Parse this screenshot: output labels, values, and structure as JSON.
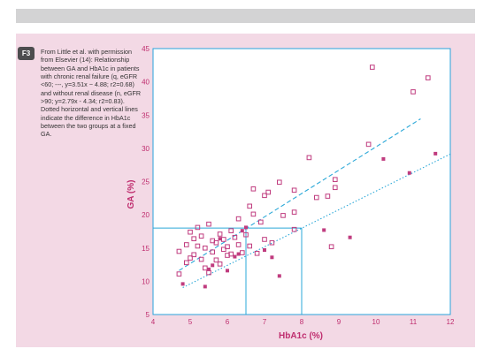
{
  "figure": {
    "badge": "F3",
    "caption": "From Little et al. with permission from Elsevier (14): Relationship between GA and HbA1c in patients with chronic renal failure (q, eGFR <60; ---, y=3.51x − 4.88; r2=0.68) and without renal disease (n, eGFR >90; y=2.79x - 4.34; r2=0.83). Dotted horizontal and vertical lines indicate the difference in HbA1c between the two groups at a fixed GA."
  },
  "colors": {
    "panel_bg": "#f3d9e5",
    "plot_border": "#29a3dc",
    "regression_line": "#2ba8d8",
    "marker": "#c03c7f",
    "label": "#bf2d6e"
  },
  "chart_data": {
    "type": "scatter",
    "title": "",
    "xlabel": "HbA1c (%)",
    "ylabel": "GA (%)",
    "xlim": [
      4,
      12
    ],
    "ylim": [
      5,
      45
    ],
    "x_ticks": [
      4,
      5,
      6,
      7,
      8,
      9,
      10,
      11,
      12
    ],
    "y_ticks": [
      5,
      10,
      15,
      20,
      25,
      30,
      35,
      40,
      45
    ],
    "grid": false,
    "series": [
      {
        "marker": "open-square",
        "points": [
          [
            4.7,
            11.1
          ],
          [
            4.7,
            14.5
          ],
          [
            4.9,
            12.8
          ],
          [
            4.9,
            15.5
          ],
          [
            5.0,
            13.5
          ],
          [
            5.0,
            17.4
          ],
          [
            5.1,
            14.0
          ],
          [
            5.1,
            16.4
          ],
          [
            5.2,
            15.3
          ],
          [
            5.2,
            18.1
          ],
          [
            5.3,
            16.8
          ],
          [
            5.3,
            13.3
          ],
          [
            5.4,
            12.0
          ],
          [
            5.4,
            15.0
          ],
          [
            5.5,
            18.6
          ],
          [
            5.5,
            11.3
          ],
          [
            5.6,
            14.4
          ],
          [
            5.6,
            16.1
          ],
          [
            5.7,
            13.2
          ],
          [
            5.7,
            15.8
          ],
          [
            5.8,
            17.1
          ],
          [
            5.8,
            12.6
          ],
          [
            5.9,
            14.8
          ],
          [
            5.9,
            16.3
          ],
          [
            6.0,
            13.9
          ],
          [
            6.0,
            15.2
          ],
          [
            6.1,
            17.6
          ],
          [
            6.1,
            14.1
          ],
          [
            6.2,
            16.6
          ],
          [
            6.3,
            15.5
          ],
          [
            6.3,
            19.4
          ],
          [
            6.4,
            14.3
          ],
          [
            6.5,
            17.0
          ],
          [
            6.6,
            21.3
          ],
          [
            6.6,
            15.3
          ],
          [
            6.7,
            20.1
          ],
          [
            6.7,
            23.9
          ],
          [
            6.8,
            14.2
          ],
          [
            6.9,
            18.9
          ],
          [
            7.0,
            16.3
          ],
          [
            7.0,
            22.9
          ],
          [
            7.1,
            23.4
          ],
          [
            7.2,
            15.8
          ],
          [
            7.4,
            24.9
          ],
          [
            7.5,
            19.9
          ],
          [
            7.8,
            23.7
          ],
          [
            7.8,
            20.4
          ],
          [
            7.8,
            17.8
          ],
          [
            8.2,
            28.6
          ],
          [
            8.4,
            22.6
          ],
          [
            8.7,
            22.8
          ],
          [
            8.8,
            15.2
          ],
          [
            8.9,
            24.1
          ],
          [
            8.9,
            25.3
          ],
          [
            9.8,
            30.6
          ],
          [
            9.9,
            42.2
          ],
          [
            11.0,
            38.5
          ],
          [
            11.4,
            40.6
          ]
        ]
      },
      {
        "marker": "filled-square",
        "points": [
          [
            4.8,
            9.6
          ],
          [
            5.4,
            9.2
          ],
          [
            5.5,
            11.8
          ],
          [
            5.6,
            12.4
          ],
          [
            5.8,
            16.4
          ],
          [
            6.0,
            11.6
          ],
          [
            6.2,
            13.7
          ],
          [
            6.3,
            14.1
          ],
          [
            6.4,
            17.6
          ],
          [
            6.5,
            18.1
          ],
          [
            7.0,
            14.7
          ],
          [
            7.2,
            13.6
          ],
          [
            7.4,
            10.8
          ],
          [
            8.6,
            17.7
          ],
          [
            9.3,
            16.6
          ],
          [
            10.2,
            28.4
          ],
          [
            10.9,
            26.3
          ],
          [
            11.6,
            29.2
          ]
        ]
      }
    ],
    "regression_lines": [
      {
        "slope": 3.51,
        "intercept": -4.88,
        "x_range": [
          4.7,
          11.2
        ],
        "style": "dashed"
      },
      {
        "slope": 2.79,
        "intercept": -4.34,
        "x_range": [
          4.8,
          12.0
        ],
        "style": "dotted"
      }
    ],
    "reference_lines": {
      "ga_level": 18,
      "hba1c_values": [
        6.5,
        8.0
      ]
    }
  }
}
